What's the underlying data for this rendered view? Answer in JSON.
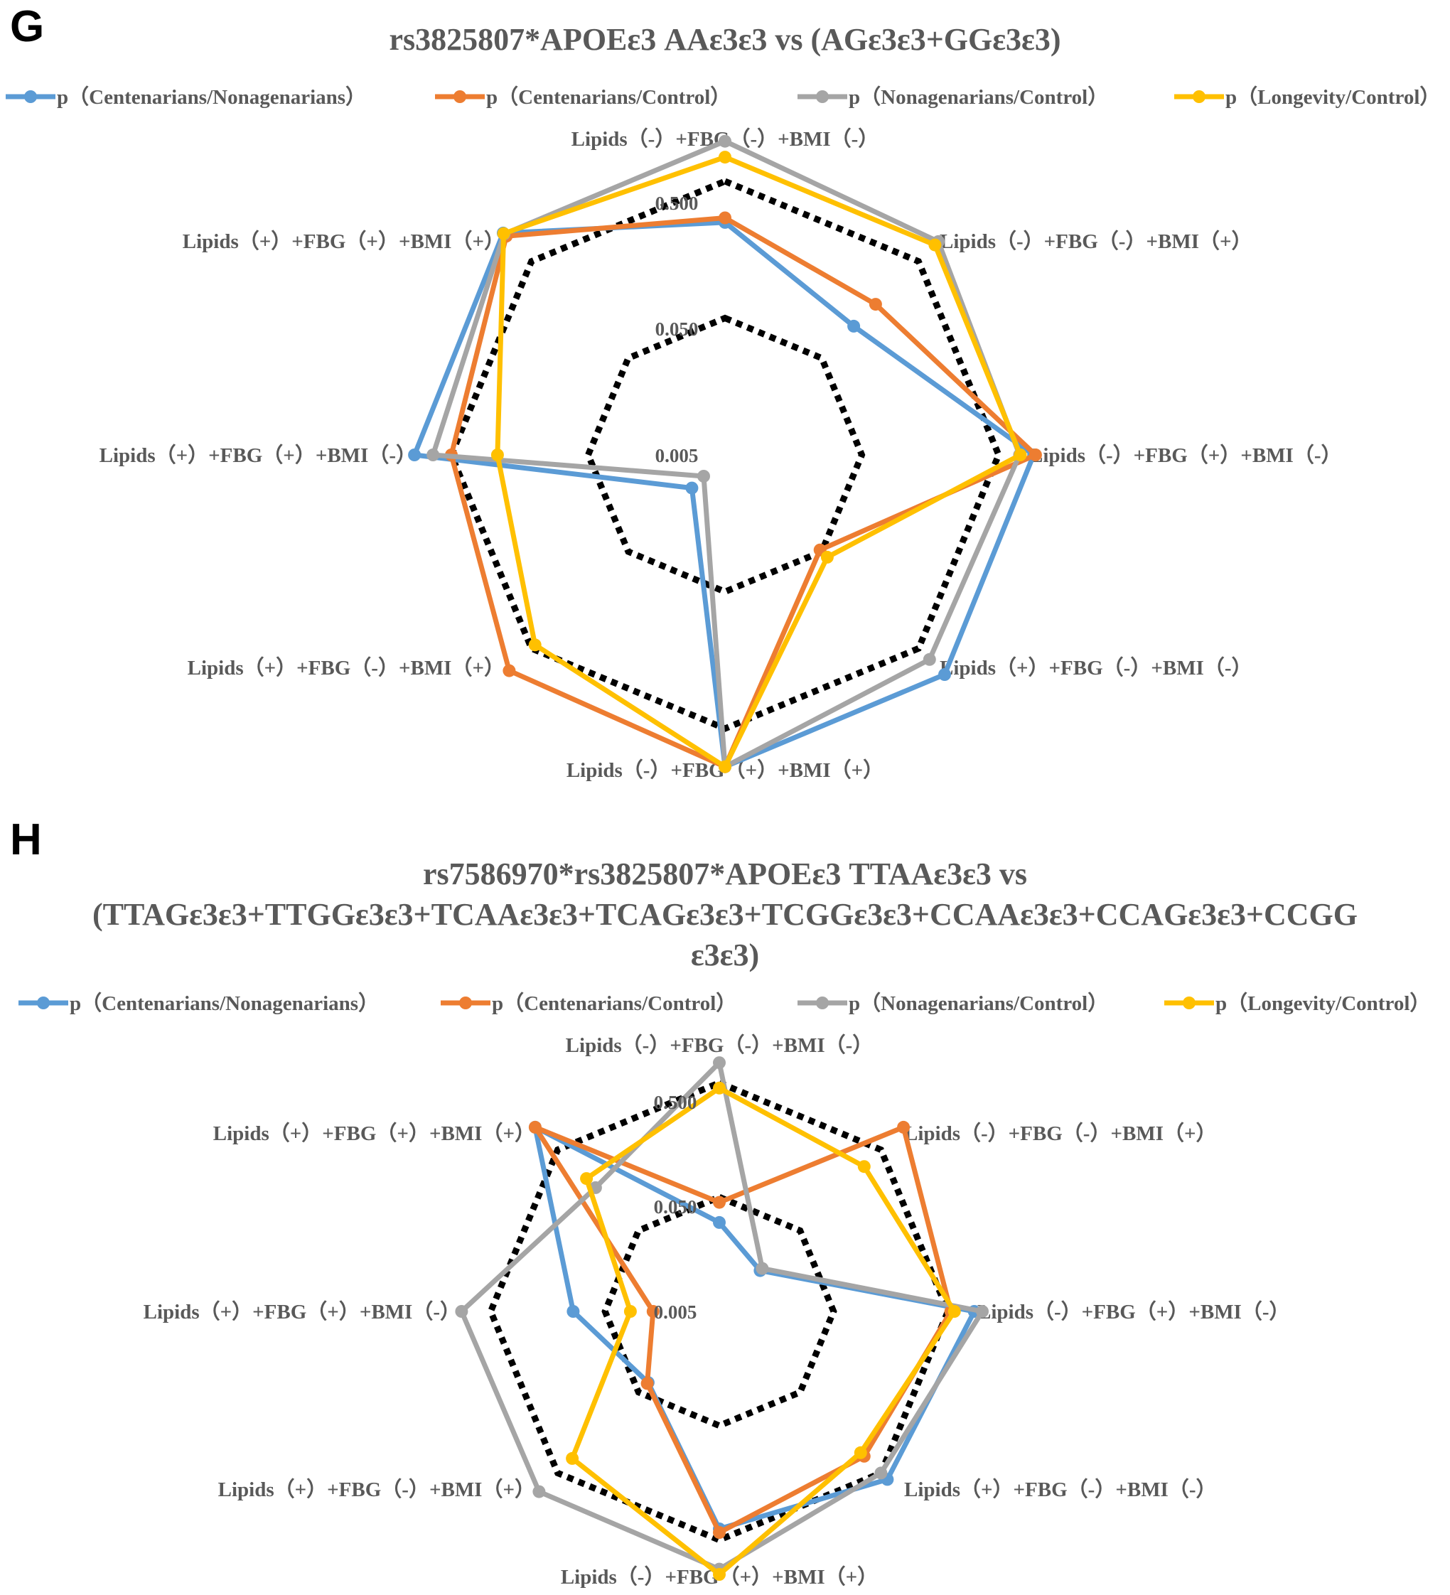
{
  "colors": {
    "blue": "#5b9bd5",
    "orange": "#ed7d31",
    "gray": "#a5a5a5",
    "yellow": "#ffc000",
    "reference": "#000000",
    "text": "#595959"
  },
  "chart_data": [
    {
      "panel": "G",
      "type": "radar",
      "title": "rs3825807*APOEε3 AAε3ε3 vs (AGε3ε3+GGε3ε3)",
      "scale": "log",
      "rlim": [
        0.005,
        1
      ],
      "reference_levels": [
        0.005,
        0.05,
        0.5
      ],
      "tick_labels": [
        "0.005",
        "0.050",
        "0.500"
      ],
      "categories": [
        "Lipids（-）+FBG（-）+BMI（-）",
        "Lipids（-）+FBG（-）+BMI（+）",
        "Lipids（-）+FBG（+）+BMI（-）",
        "Lipids（+）+FBG（-）+BMI（-）",
        "Lipids（-）+FBG（+）+BMI（+）",
        "Lipids（+）+FBG（-）+BMI（+）",
        "Lipids（+）+FBG（+）+BMI（-）",
        "Lipids（+）+FBG（+）+BMI（+）"
      ],
      "series": [
        {
          "name": "p（Centenarians/Nonagenarians）",
          "color": "#5b9bd5",
          "values": [
            0.25,
            0.107,
            0.9,
            0.93,
            0.95,
            0.011,
            0.93,
            0.98
          ]
        },
        {
          "name": "p（Centenarians/Control）",
          "color": "#ed7d31",
          "values": [
            0.27,
            0.18,
            0.93,
            0.048,
            0.95,
            0.85,
            0.5,
            0.91
          ]
        },
        {
          "name": "p（Nonagenarians/Control）",
          "color": "#a5a5a5",
          "values": [
            0.98,
            0.8,
            0.71,
            0.65,
            0.95,
            0.0083,
            0.68,
            0.96
          ]
        },
        {
          "name": "p（Longevity/Control）",
          "color": "#ffc000",
          "values": [
            0.75,
            0.74,
            0.72,
            0.057,
            0.95,
            0.46,
            0.23,
            0.97
          ]
        }
      ],
      "legend_position": "top"
    },
    {
      "panel": "H",
      "type": "radar",
      "title_lines": [
        "rs7586970*rs3825807*APOEε3 TTAAε3ε3 vs",
        "(TTAGε3ε3+TTGGε3ε3+TCAAε3ε3+TCAGε3ε3+TCGGε3ε3+CCAAε3ε3+CCAGε3ε3+CCGG",
        "ε3ε3)"
      ],
      "scale": "log",
      "rlim": [
        0.005,
        1
      ],
      "reference_levels": [
        0.005,
        0.05,
        0.5
      ],
      "tick_labels": [
        "0.005",
        "0.050",
        "0.500"
      ],
      "categories": [
        "Lipids（-）+FBG（-）+BMI（-）",
        "Lipids（-）+FBG（-）+BMI（+）",
        "Lipids（-）+FBG（+）+BMI（-）",
        "Lipids（+）+FBG（-）+BMI（-）",
        "Lipids（-）+FBG（+）+BMI（+）",
        "Lipids（+）+FBG（-）+BMI（+）",
        "Lipids（+）+FBG（+）+BMI（-）",
        "Lipids（+）+FBG（+）+BMI（+）"
      ],
      "series": [
        {
          "name": "p（Centenarians/Nonagenarians）",
          "color": "#5b9bd5",
          "values": [
            0.03,
            0.016,
            0.85,
            0.6,
            0.4,
            0.038,
            0.095,
            0.95
          ]
        },
        {
          "name": "p（Centenarians/Control）",
          "color": "#ed7d31",
          "values": [
            0.045,
            0.95,
            0.53,
            0.31,
            0.43,
            0.039,
            0.019,
            0.95
          ]
        },
        {
          "name": "p（Nonagenarians/Control）",
          "color": "#a5a5a5",
          "values": [
            0.75,
            0.017,
            1.0,
            0.5,
            0.9,
            0.85,
            0.9,
            0.17
          ]
        },
        {
          "name": "p（Longevity/Control）",
          "color": "#ffc000",
          "values": [
            0.45,
            0.31,
            0.57,
            0.28,
            1.0,
            0.33,
            0.03,
            0.22
          ]
        }
      ],
      "legend_position": "top"
    }
  ]
}
